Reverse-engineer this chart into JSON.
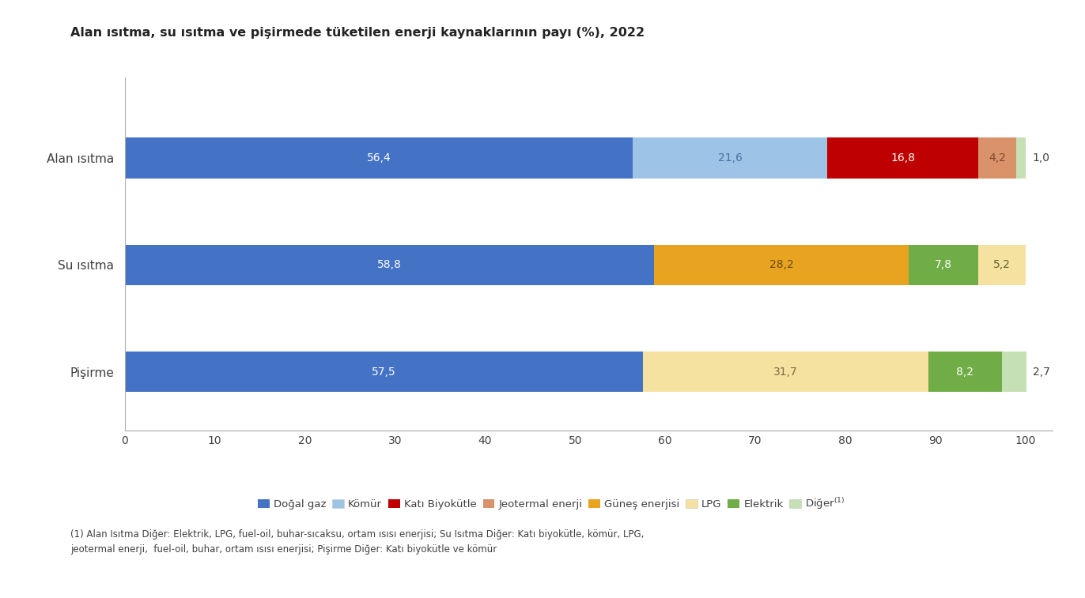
{
  "title": "Alan ısıtma, su ısıtma ve pişirmede tüketilen enerji kaynaklarının payı (%), 2022",
  "categories_display": [
    "Alan ısıtma",
    "Su ısıtma",
    "Pişirme"
  ],
  "row_data": {
    "Alan ısıtma": [
      {
        "name": "Doğal gaz",
        "value": 56.4,
        "color": "#4472C4",
        "label": "56,4",
        "label_color": "#ffffff"
      },
      {
        "name": "Kömür",
        "value": 21.6,
        "color": "#9DC3E6",
        "label": "21,6",
        "label_color": "#4a6fa5"
      },
      {
        "name": "Katı Biyokütle",
        "value": 16.8,
        "color": "#BE0000",
        "label": "16,8",
        "label_color": "#ffffff"
      },
      {
        "name": "Jeotermal enerji",
        "value": 4.2,
        "color": "#D9926A",
        "label": "4,2",
        "label_color": "#7a4a30"
      },
      {
        "name": "Diğer",
        "value": 1.0,
        "color": "#C5E0B4",
        "label": "1,0",
        "label_color": "#404040",
        "outside": true
      }
    ],
    "Su ısıtma": [
      {
        "name": "Doğal gaz",
        "value": 58.8,
        "color": "#4472C4",
        "label": "58,8",
        "label_color": "#ffffff"
      },
      {
        "name": "Güneş enerjisi",
        "value": 28.2,
        "color": "#E8A320",
        "label": "28,2",
        "label_color": "#6b4a10"
      },
      {
        "name": "Elektrik",
        "value": 7.8,
        "color": "#70AD47",
        "label": "7,8",
        "label_color": "#ffffff"
      },
      {
        "name": "LPG",
        "value": 5.2,
        "color": "#F5E1A0",
        "label": "5,2",
        "label_color": "#606030"
      }
    ],
    "Pişirme": [
      {
        "name": "Doğal gaz",
        "value": 57.5,
        "color": "#4472C4",
        "label": "57,5",
        "label_color": "#ffffff"
      },
      {
        "name": "LPG",
        "value": 31.7,
        "color": "#F5E1A0",
        "label": "31,7",
        "label_color": "#806840"
      },
      {
        "name": "Elektrik",
        "value": 8.2,
        "color": "#70AD47",
        "label": "8,2",
        "label_color": "#ffffff"
      },
      {
        "name": "Diğer",
        "value": 2.7,
        "color": "#C5E0B4",
        "label": "2,7",
        "label_color": "#404040",
        "outside": true
      }
    ]
  },
  "legend_items": [
    {
      "label": "Doğal gaz",
      "color": "#4472C4"
    },
    {
      "label": "Kömür",
      "color": "#9DC3E6"
    },
    {
      "label": "Katı Biyokütle",
      "color": "#BE0000"
    },
    {
      "label": "Jeotermal enerji",
      "color": "#D9926A"
    },
    {
      "label": "Güneş enerjisi",
      "color": "#E8A320"
    },
    {
      "label": "LPG",
      "color": "#F5E1A0"
    },
    {
      "label": "Elektrik",
      "color": "#70AD47"
    },
    {
      "label": "Diğer(1)",
      "color": "#C5E0B4"
    }
  ],
  "footnote": "(1) Alan Isıtma Diğer: Elektrik, LPG, fuel-oil, buhar-sıcaksu, ortam ısısı enerjisi; Su Isıtma Diğer: Katı biyokütle, kömür, LPG,\njeotermal enerji,  fuel-oil, buhar, ortam ısısı enerjisi; Pişirme Diğer: Katı biyokütle ve kömür",
  "xlim": [
    0,
    103
  ],
  "xticks": [
    0,
    10,
    20,
    30,
    40,
    50,
    60,
    70,
    80,
    90,
    100
  ],
  "bar_height": 0.38,
  "bg_color": "#FFFFFF",
  "text_color": "#404040",
  "title_fontsize": 11.5,
  "label_fontsize": 10,
  "ytick_fontsize": 11,
  "xtick_fontsize": 10
}
